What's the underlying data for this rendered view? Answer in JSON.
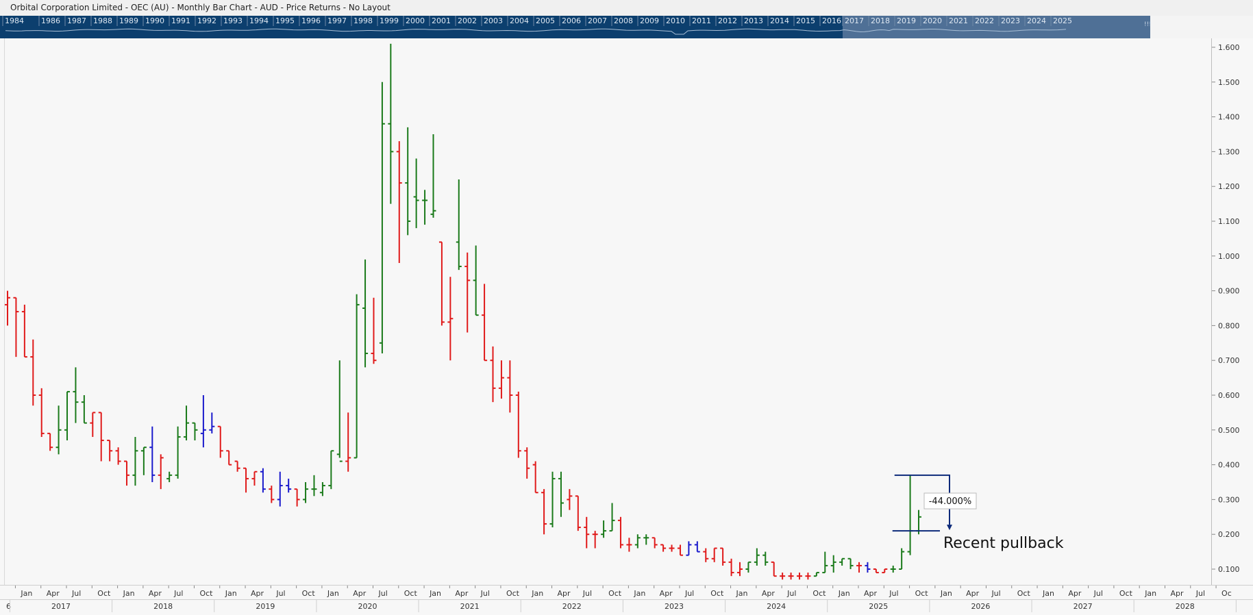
{
  "window": {
    "title": "Orbital Corporation Limited - OEC (AU) - Monthly Bar Chart - AUD - Price Returns - No Layout"
  },
  "navigator": {
    "years": [
      "1984",
      "1986",
      "1987",
      "1988",
      "1989",
      "1990",
      "1991",
      "1992",
      "1993",
      "1994",
      "1995",
      "1996",
      "1997",
      "1998",
      "1999",
      "2000",
      "2001",
      "2002",
      "2003",
      "2004",
      "2005",
      "2006",
      "2007",
      "2008",
      "2009",
      "2010",
      "2011",
      "2012",
      "2013",
      "2014",
      "2015",
      "2016",
      "2017",
      "2018",
      "2019",
      "2020",
      "2021",
      "2022",
      "2023",
      "2024",
      "2025"
    ],
    "grip_label": "!!!",
    "colors": {
      "background": "#0c3f6e",
      "selection": "#4f7096",
      "line": "#a9bfd6"
    }
  },
  "axis": {
    "price_ticks": [
      "0.100",
      "0.200",
      "0.300",
      "0.400",
      "0.500",
      "0.600",
      "0.700",
      "0.800",
      "0.900",
      "1.000",
      "1.100",
      "1.200",
      "1.300",
      "1.400",
      "1.500",
      "1.600"
    ],
    "month_labels": [
      "Jan",
      "Apr",
      "Jul",
      "Oct",
      "Jan",
      "Apr",
      "Jul",
      "Oct",
      "Jan",
      "Apr",
      "Jul",
      "Oct",
      "Jan",
      "Apr",
      "Jul",
      "Oct",
      "Jan",
      "Apr",
      "Jul",
      "Oct",
      "Jan",
      "Apr",
      "Jul",
      "Oct",
      "Jan",
      "Apr",
      "Jul",
      "Oct",
      "Jan",
      "Apr",
      "Jul",
      "Oct",
      "Jan",
      "Apr",
      "Jul",
      "Oct",
      "Jan",
      "Apr",
      "Jul",
      "Oct",
      "Jan",
      "Apr",
      "Jul",
      "Oct",
      "Jan",
      "Apr",
      "Jul",
      "Oc"
    ],
    "year_labels": [
      "2017",
      "2018",
      "2019",
      "2020",
      "2021",
      "2022",
      "2023",
      "2024",
      "2025",
      "2026",
      "2027",
      "2028"
    ],
    "year_prefix": "6"
  },
  "annotation": {
    "measure_label": "-44.000%",
    "text": "Recent pullback",
    "color": "#0c2a7a",
    "from": {
      "date": "2025-08",
      "price": 0.37
    },
    "to": {
      "date": "2025-09",
      "price": 0.21
    }
  },
  "chart_data": {
    "type": "ohlc",
    "interval": "monthly",
    "currency": "AUD",
    "ylim": [
      0.05,
      1.63
    ],
    "y_scale": "linear",
    "grid": false,
    "colors": {
      "up": "#1a7a1a",
      "down": "#e01a1a",
      "neutral": "#1a1acc"
    },
    "bars": [
      {
        "date": "2016-12",
        "o": 0.86,
        "h": 0.9,
        "l": 0.8,
        "c": 0.88,
        "dir": "down"
      },
      {
        "date": "2017-01",
        "o": 0.88,
        "h": 0.88,
        "l": 0.71,
        "c": 0.84,
        "dir": "down"
      },
      {
        "date": "2017-02",
        "o": 0.84,
        "h": 0.86,
        "l": 0.71,
        "c": 0.71,
        "dir": "down"
      },
      {
        "date": "2017-03",
        "o": 0.71,
        "h": 0.76,
        "l": 0.57,
        "c": 0.6,
        "dir": "down"
      },
      {
        "date": "2017-04",
        "o": 0.6,
        "h": 0.62,
        "l": 0.48,
        "c": 0.49,
        "dir": "down"
      },
      {
        "date": "2017-05",
        "o": 0.49,
        "h": 0.49,
        "l": 0.44,
        "c": 0.45,
        "dir": "down"
      },
      {
        "date": "2017-06",
        "o": 0.45,
        "h": 0.57,
        "l": 0.43,
        "c": 0.5,
        "dir": "up"
      },
      {
        "date": "2017-07",
        "o": 0.5,
        "h": 0.61,
        "l": 0.47,
        "c": 0.61,
        "dir": "up"
      },
      {
        "date": "2017-08",
        "o": 0.61,
        "h": 0.68,
        "l": 0.52,
        "c": 0.58,
        "dir": "up"
      },
      {
        "date": "2017-09",
        "o": 0.58,
        "h": 0.6,
        "l": 0.52,
        "c": 0.52,
        "dir": "up"
      },
      {
        "date": "2017-10",
        "o": 0.52,
        "h": 0.55,
        "l": 0.48,
        "c": 0.55,
        "dir": "down"
      },
      {
        "date": "2017-11",
        "o": 0.55,
        "h": 0.55,
        "l": 0.41,
        "c": 0.47,
        "dir": "down"
      },
      {
        "date": "2017-12",
        "o": 0.47,
        "h": 0.47,
        "l": 0.41,
        "c": 0.44,
        "dir": "down"
      },
      {
        "date": "2018-01",
        "o": 0.44,
        "h": 0.45,
        "l": 0.4,
        "c": 0.41,
        "dir": "down"
      },
      {
        "date": "2018-02",
        "o": 0.41,
        "h": 0.41,
        "l": 0.34,
        "c": 0.37,
        "dir": "down"
      },
      {
        "date": "2018-03",
        "o": 0.37,
        "h": 0.48,
        "l": 0.34,
        "c": 0.44,
        "dir": "up"
      },
      {
        "date": "2018-04",
        "o": 0.44,
        "h": 0.45,
        "l": 0.37,
        "c": 0.45,
        "dir": "up"
      },
      {
        "date": "2018-05",
        "o": 0.45,
        "h": 0.51,
        "l": 0.35,
        "c": 0.37,
        "dir": "neutral"
      },
      {
        "date": "2018-06",
        "o": 0.37,
        "h": 0.43,
        "l": 0.33,
        "c": 0.42,
        "dir": "down"
      },
      {
        "date": "2018-07",
        "o": 0.36,
        "h": 0.38,
        "l": 0.35,
        "c": 0.37,
        "dir": "up"
      },
      {
        "date": "2018-08",
        "o": 0.37,
        "h": 0.51,
        "l": 0.36,
        "c": 0.48,
        "dir": "up"
      },
      {
        "date": "2018-09",
        "o": 0.48,
        "h": 0.57,
        "l": 0.47,
        "c": 0.52,
        "dir": "up"
      },
      {
        "date": "2018-10",
        "o": 0.52,
        "h": 0.52,
        "l": 0.47,
        "c": 0.5,
        "dir": "up"
      },
      {
        "date": "2018-11",
        "o": 0.49,
        "h": 0.6,
        "l": 0.45,
        "c": 0.5,
        "dir": "neutral"
      },
      {
        "date": "2018-12",
        "o": 0.5,
        "h": 0.55,
        "l": 0.49,
        "c": 0.51,
        "dir": "neutral"
      },
      {
        "date": "2019-01",
        "o": 0.51,
        "h": 0.51,
        "l": 0.42,
        "c": 0.44,
        "dir": "down"
      },
      {
        "date": "2019-02",
        "o": 0.44,
        "h": 0.44,
        "l": 0.4,
        "c": 0.4,
        "dir": "down"
      },
      {
        "date": "2019-03",
        "o": 0.41,
        "h": 0.41,
        "l": 0.38,
        "c": 0.39,
        "dir": "down"
      },
      {
        "date": "2019-04",
        "o": 0.39,
        "h": 0.39,
        "l": 0.32,
        "c": 0.36,
        "dir": "down"
      },
      {
        "date": "2019-05",
        "o": 0.36,
        "h": 0.38,
        "l": 0.34,
        "c": 0.38,
        "dir": "down"
      },
      {
        "date": "2019-06",
        "o": 0.38,
        "h": 0.39,
        "l": 0.32,
        "c": 0.33,
        "dir": "neutral"
      },
      {
        "date": "2019-07",
        "o": 0.33,
        "h": 0.34,
        "l": 0.29,
        "c": 0.3,
        "dir": "down"
      },
      {
        "date": "2019-08",
        "o": 0.3,
        "h": 0.38,
        "l": 0.28,
        "c": 0.34,
        "dir": "neutral"
      },
      {
        "date": "2019-09",
        "o": 0.34,
        "h": 0.36,
        "l": 0.32,
        "c": 0.33,
        "dir": "neutral"
      },
      {
        "date": "2019-10",
        "o": 0.33,
        "h": 0.33,
        "l": 0.28,
        "c": 0.3,
        "dir": "down"
      },
      {
        "date": "2019-11",
        "o": 0.3,
        "h": 0.35,
        "l": 0.29,
        "c": 0.33,
        "dir": "up"
      },
      {
        "date": "2019-12",
        "o": 0.33,
        "h": 0.37,
        "l": 0.31,
        "c": 0.33,
        "dir": "up"
      },
      {
        "date": "2020-01",
        "o": 0.32,
        "h": 0.35,
        "l": 0.31,
        "c": 0.34,
        "dir": "up"
      },
      {
        "date": "2020-02",
        "o": 0.34,
        "h": 0.44,
        "l": 0.33,
        "c": 0.44,
        "dir": "up"
      },
      {
        "date": "2020-03",
        "o": 0.43,
        "h": 0.7,
        "l": 0.42,
        "c": 0.41,
        "dir": "up"
      },
      {
        "date": "2020-04",
        "o": 0.41,
        "h": 0.55,
        "l": 0.38,
        "c": 0.42,
        "dir": "down"
      },
      {
        "date": "2020-05",
        "o": 0.42,
        "h": 0.89,
        "l": 0.42,
        "c": 0.86,
        "dir": "up"
      },
      {
        "date": "2020-06",
        "o": 0.85,
        "h": 0.99,
        "l": 0.68,
        "c": 0.72,
        "dir": "up"
      },
      {
        "date": "2020-07",
        "o": 0.72,
        "h": 0.88,
        "l": 0.69,
        "c": 0.7,
        "dir": "down"
      },
      {
        "date": "2020-08",
        "o": 0.75,
        "h": 1.5,
        "l": 0.72,
        "c": 1.38,
        "dir": "up"
      },
      {
        "date": "2020-09",
        "o": 1.38,
        "h": 1.61,
        "l": 1.15,
        "c": 1.3,
        "dir": "up"
      },
      {
        "date": "2020-10",
        "o": 1.3,
        "h": 1.33,
        "l": 0.98,
        "c": 1.21,
        "dir": "down"
      },
      {
        "date": "2020-11",
        "o": 1.21,
        "h": 1.37,
        "l": 1.06,
        "c": 1.1,
        "dir": "up"
      },
      {
        "date": "2020-12",
        "o": 1.17,
        "h": 1.28,
        "l": 1.08,
        "c": 1.16,
        "dir": "up"
      },
      {
        "date": "2021-01",
        "o": 1.16,
        "h": 1.19,
        "l": 1.09,
        "c": 1.16,
        "dir": "up"
      },
      {
        "date": "2021-02",
        "o": 1.12,
        "h": 1.35,
        "l": 1.11,
        "c": 1.13,
        "dir": "up"
      },
      {
        "date": "2021-03",
        "o": 1.04,
        "h": 1.04,
        "l": 0.8,
        "c": 0.81,
        "dir": "down"
      },
      {
        "date": "2021-04",
        "o": 0.81,
        "h": 0.94,
        "l": 0.7,
        "c": 0.82,
        "dir": "down"
      },
      {
        "date": "2021-05",
        "o": 1.04,
        "h": 1.22,
        "l": 0.96,
        "c": 0.97,
        "dir": "up"
      },
      {
        "date": "2021-06",
        "o": 0.97,
        "h": 1.01,
        "l": 0.78,
        "c": 0.93,
        "dir": "down"
      },
      {
        "date": "2021-07",
        "o": 0.93,
        "h": 1.03,
        "l": 0.83,
        "c": 0.83,
        "dir": "up"
      },
      {
        "date": "2021-08",
        "o": 0.83,
        "h": 0.92,
        "l": 0.7,
        "c": 0.7,
        "dir": "down"
      },
      {
        "date": "2021-09",
        "o": 0.7,
        "h": 0.74,
        "l": 0.58,
        "c": 0.62,
        "dir": "down"
      },
      {
        "date": "2021-10",
        "o": 0.62,
        "h": 0.7,
        "l": 0.59,
        "c": 0.65,
        "dir": "down"
      },
      {
        "date": "2021-11",
        "o": 0.65,
        "h": 0.7,
        "l": 0.55,
        "c": 0.6,
        "dir": "down"
      },
      {
        "date": "2021-12",
        "o": 0.6,
        "h": 0.61,
        "l": 0.42,
        "c": 0.44,
        "dir": "down"
      },
      {
        "date": "2022-01",
        "o": 0.44,
        "h": 0.45,
        "l": 0.36,
        "c": 0.39,
        "dir": "down"
      },
      {
        "date": "2022-02",
        "o": 0.4,
        "h": 0.41,
        "l": 0.32,
        "c": 0.32,
        "dir": "down"
      },
      {
        "date": "2022-03",
        "o": 0.32,
        "h": 0.33,
        "l": 0.2,
        "c": 0.23,
        "dir": "down"
      },
      {
        "date": "2022-04",
        "o": 0.23,
        "h": 0.38,
        "l": 0.22,
        "c": 0.36,
        "dir": "up"
      },
      {
        "date": "2022-05",
        "o": 0.36,
        "h": 0.38,
        "l": 0.25,
        "c": 0.29,
        "dir": "up"
      },
      {
        "date": "2022-06",
        "o": 0.3,
        "h": 0.33,
        "l": 0.27,
        "c": 0.31,
        "dir": "down"
      },
      {
        "date": "2022-07",
        "o": 0.31,
        "h": 0.31,
        "l": 0.21,
        "c": 0.22,
        "dir": "down"
      },
      {
        "date": "2022-08",
        "o": 0.22,
        "h": 0.25,
        "l": 0.16,
        "c": 0.2,
        "dir": "down"
      },
      {
        "date": "2022-09",
        "o": 0.2,
        "h": 0.21,
        "l": 0.16,
        "c": 0.2,
        "dir": "down"
      },
      {
        "date": "2022-10",
        "o": 0.2,
        "h": 0.24,
        "l": 0.19,
        "c": 0.21,
        "dir": "up"
      },
      {
        "date": "2022-11",
        "o": 0.21,
        "h": 0.29,
        "l": 0.21,
        "c": 0.24,
        "dir": "up"
      },
      {
        "date": "2022-12",
        "o": 0.24,
        "h": 0.25,
        "l": 0.16,
        "c": 0.17,
        "dir": "down"
      },
      {
        "date": "2023-01",
        "o": 0.17,
        "h": 0.19,
        "l": 0.15,
        "c": 0.17,
        "dir": "down"
      },
      {
        "date": "2023-02",
        "o": 0.17,
        "h": 0.2,
        "l": 0.16,
        "c": 0.19,
        "dir": "up"
      },
      {
        "date": "2023-03",
        "o": 0.19,
        "h": 0.2,
        "l": 0.17,
        "c": 0.19,
        "dir": "up"
      },
      {
        "date": "2023-04",
        "o": 0.19,
        "h": 0.19,
        "l": 0.16,
        "c": 0.17,
        "dir": "down"
      },
      {
        "date": "2023-05",
        "o": 0.17,
        "h": 0.17,
        "l": 0.15,
        "c": 0.16,
        "dir": "down"
      },
      {
        "date": "2023-06",
        "o": 0.16,
        "h": 0.17,
        "l": 0.15,
        "c": 0.16,
        "dir": "down"
      },
      {
        "date": "2023-07",
        "o": 0.16,
        "h": 0.17,
        "l": 0.14,
        "c": 0.14,
        "dir": "down"
      },
      {
        "date": "2023-08",
        "o": 0.14,
        "h": 0.18,
        "l": 0.14,
        "c": 0.17,
        "dir": "neutral"
      },
      {
        "date": "2023-09",
        "o": 0.17,
        "h": 0.18,
        "l": 0.15,
        "c": 0.15,
        "dir": "neutral"
      },
      {
        "date": "2023-10",
        "o": 0.15,
        "h": 0.16,
        "l": 0.12,
        "c": 0.13,
        "dir": "down"
      },
      {
        "date": "2023-11",
        "o": 0.13,
        "h": 0.16,
        "l": 0.12,
        "c": 0.16,
        "dir": "down"
      },
      {
        "date": "2023-12",
        "o": 0.16,
        "h": 0.16,
        "l": 0.11,
        "c": 0.12,
        "dir": "down"
      },
      {
        "date": "2024-01",
        "o": 0.12,
        "h": 0.13,
        "l": 0.08,
        "c": 0.09,
        "dir": "down"
      },
      {
        "date": "2024-02",
        "o": 0.09,
        "h": 0.12,
        "l": 0.08,
        "c": 0.1,
        "dir": "down"
      },
      {
        "date": "2024-03",
        "o": 0.1,
        "h": 0.12,
        "l": 0.09,
        "c": 0.12,
        "dir": "up"
      },
      {
        "date": "2024-04",
        "o": 0.12,
        "h": 0.16,
        "l": 0.11,
        "c": 0.14,
        "dir": "up"
      },
      {
        "date": "2024-05",
        "o": 0.14,
        "h": 0.15,
        "l": 0.11,
        "c": 0.12,
        "dir": "up"
      },
      {
        "date": "2024-06",
        "o": 0.12,
        "h": 0.12,
        "l": 0.08,
        "c": 0.08,
        "dir": "down"
      },
      {
        "date": "2024-07",
        "o": 0.08,
        "h": 0.09,
        "l": 0.07,
        "c": 0.08,
        "dir": "down"
      },
      {
        "date": "2024-08",
        "o": 0.08,
        "h": 0.09,
        "l": 0.07,
        "c": 0.08,
        "dir": "down"
      },
      {
        "date": "2024-09",
        "o": 0.08,
        "h": 0.09,
        "l": 0.07,
        "c": 0.08,
        "dir": "down"
      },
      {
        "date": "2024-10",
        "o": 0.08,
        "h": 0.09,
        "l": 0.07,
        "c": 0.08,
        "dir": "down"
      },
      {
        "date": "2024-11",
        "o": 0.08,
        "h": 0.09,
        "l": 0.08,
        "c": 0.09,
        "dir": "up"
      },
      {
        "date": "2024-12",
        "o": 0.09,
        "h": 0.15,
        "l": 0.09,
        "c": 0.11,
        "dir": "up"
      },
      {
        "date": "2025-01",
        "o": 0.11,
        "h": 0.14,
        "l": 0.09,
        "c": 0.12,
        "dir": "up"
      },
      {
        "date": "2025-02",
        "o": 0.12,
        "h": 0.13,
        "l": 0.11,
        "c": 0.13,
        "dir": "up"
      },
      {
        "date": "2025-03",
        "o": 0.13,
        "h": 0.13,
        "l": 0.1,
        "c": 0.11,
        "dir": "up"
      },
      {
        "date": "2025-04",
        "o": 0.11,
        "h": 0.12,
        "l": 0.09,
        "c": 0.11,
        "dir": "down"
      },
      {
        "date": "2025-05",
        "o": 0.11,
        "h": 0.12,
        "l": 0.09,
        "c": 0.1,
        "dir": "neutral"
      },
      {
        "date": "2025-06",
        "o": 0.1,
        "h": 0.1,
        "l": 0.09,
        "c": 0.09,
        "dir": "down"
      },
      {
        "date": "2025-07",
        "o": 0.09,
        "h": 0.1,
        "l": 0.09,
        "c": 0.1,
        "dir": "down"
      },
      {
        "date": "2025-08",
        "o": 0.1,
        "h": 0.11,
        "l": 0.09,
        "c": 0.1,
        "dir": "up"
      },
      {
        "date": "2025-09",
        "o": 0.1,
        "h": 0.16,
        "l": 0.1,
        "c": 0.15,
        "dir": "up"
      },
      {
        "date": "2025-10",
        "o": 0.15,
        "h": 0.37,
        "l": 0.14,
        "c": 0.21,
        "dir": "up"
      },
      {
        "date": "2025-11",
        "o": 0.21,
        "h": 0.27,
        "l": 0.2,
        "c": 0.25,
        "dir": "up"
      }
    ]
  }
}
